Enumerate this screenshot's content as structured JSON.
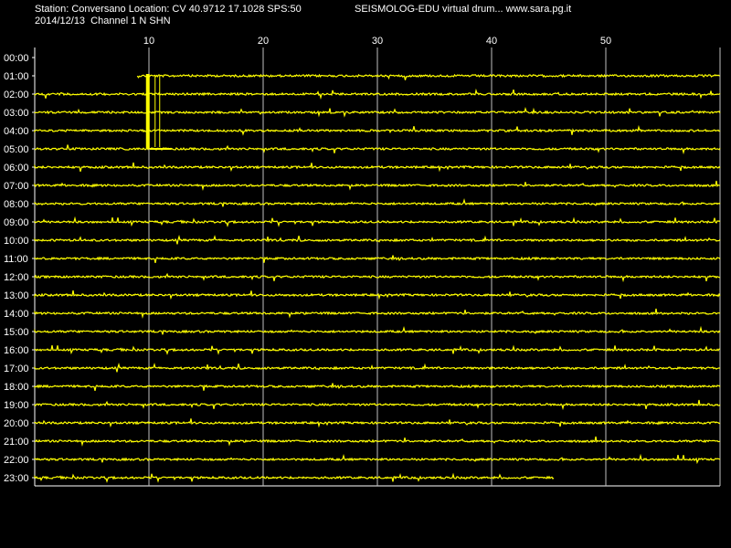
{
  "header": {
    "station_line": "Station: Conversano Location: CV 40.9712 17.1028 SPS:50",
    "brand_line": "SEISMOLOG-EDU virtual drum... www.sara.pg.it",
    "date_line": "2014/12/13  Channel 1 N SHN"
  },
  "chart_data": {
    "type": "line",
    "title": "",
    "xlabel": "",
    "ylabel": "",
    "x_tick_labels": [
      "10",
      "20",
      "30",
      "40",
      "50"
    ],
    "x_ticks": [
      10,
      20,
      30,
      40,
      50
    ],
    "xlim": [
      0,
      60
    ],
    "row_labels": [
      "00:00",
      "01:00",
      "02:00",
      "03:00",
      "04:00",
      "05:00",
      "06:00",
      "07:00",
      "08:00",
      "09:00",
      "10:00",
      "11:00",
      "12:00",
      "13:00",
      "14:00",
      "15:00",
      "16:00",
      "17:00",
      "18:00",
      "19:00",
      "20:00",
      "21:00",
      "22:00",
      "23:00"
    ],
    "trace_color": "#ffff00",
    "grid_color": "#c0c0c0",
    "background": "#000000",
    "grid": true,
    "traces": [
      {
        "hour": "00:00",
        "start_min": 0,
        "end_min": 0
      },
      {
        "hour": "01:00",
        "start_min": 9,
        "end_min": 60
      },
      {
        "hour": "02:00",
        "start_min": 0,
        "end_min": 60
      },
      {
        "hour": "03:00",
        "start_min": 0,
        "end_min": 60
      },
      {
        "hour": "04:00",
        "start_min": 0,
        "end_min": 60
      },
      {
        "hour": "05:00",
        "start_min": 0,
        "end_min": 60
      },
      {
        "hour": "06:00",
        "start_min": 0,
        "end_min": 60
      },
      {
        "hour": "07:00",
        "start_min": 0,
        "end_min": 60
      },
      {
        "hour": "08:00",
        "start_min": 0,
        "end_min": 60
      },
      {
        "hour": "09:00",
        "start_min": 0,
        "end_min": 60
      },
      {
        "hour": "10:00",
        "start_min": 0,
        "end_min": 60
      },
      {
        "hour": "11:00",
        "start_min": 0,
        "end_min": 60
      },
      {
        "hour": "12:00",
        "start_min": 0,
        "end_min": 60
      },
      {
        "hour": "13:00",
        "start_min": 0,
        "end_min": 60
      },
      {
        "hour": "14:00",
        "start_min": 0,
        "end_min": 60
      },
      {
        "hour": "15:00",
        "start_min": 0,
        "end_min": 60
      },
      {
        "hour": "16:00",
        "start_min": 0,
        "end_min": 60
      },
      {
        "hour": "17:00",
        "start_min": 0,
        "end_min": 60
      },
      {
        "hour": "18:00",
        "start_min": 0,
        "end_min": 60
      },
      {
        "hour": "19:00",
        "start_min": 0,
        "end_min": 60
      },
      {
        "hour": "20:00",
        "start_min": 0,
        "end_min": 60
      },
      {
        "hour": "21:00",
        "start_min": 0,
        "end_min": 60
      },
      {
        "hour": "22:00",
        "start_min": 0,
        "end_min": 60
      },
      {
        "hour": "23:00",
        "start_min": 0,
        "end_min": 45.5
      }
    ],
    "events": [
      {
        "hour": "01:00",
        "minute": 9.9,
        "span_hours": 4,
        "description": "large amplitude spike crossing rows 01:00–05:00"
      }
    ]
  }
}
